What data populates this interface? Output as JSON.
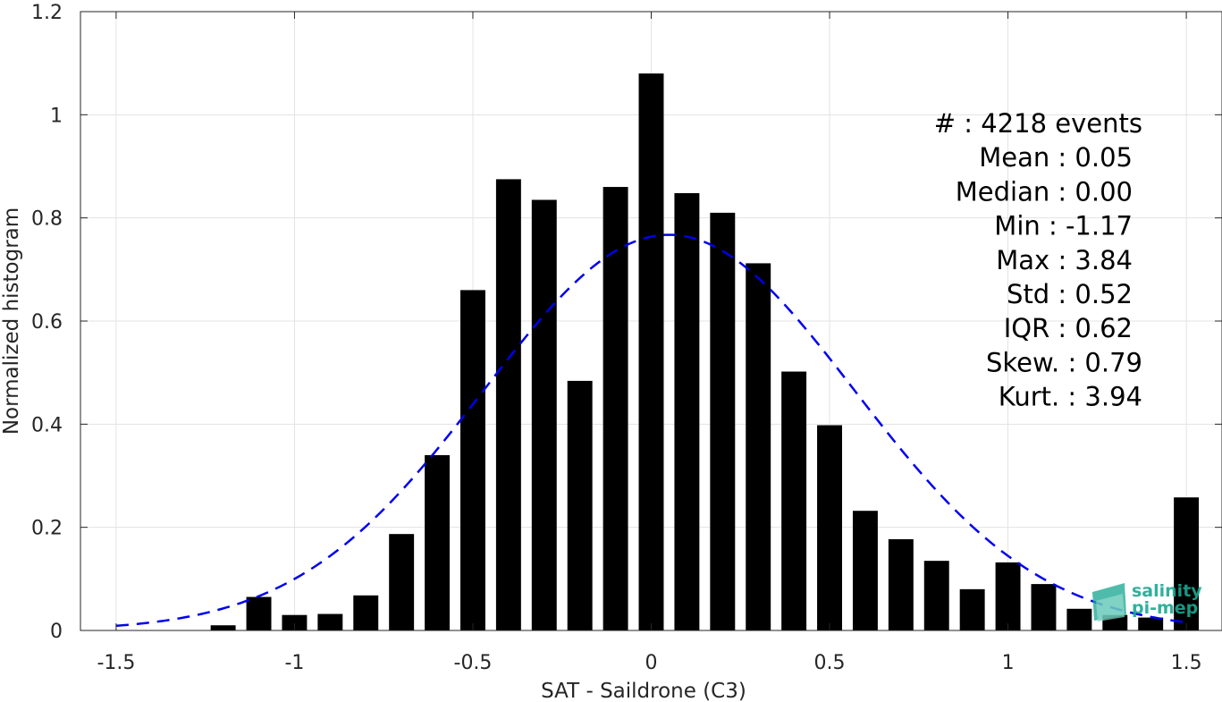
{
  "chart_data": {
    "type": "bar",
    "title": "",
    "xlabel": "SAT - Saildrone (C3)",
    "ylabel": "Normalized histogram",
    "xlim": [
      -1.6,
      1.6
    ],
    "ylim": [
      0,
      1.2
    ],
    "xticks": [
      -1.5,
      -1,
      -0.5,
      0,
      0.5,
      1,
      1.5
    ],
    "xtick_labels": [
      "-1.5",
      "-1",
      "-0.5",
      "0",
      "0.5",
      "1",
      "1.5"
    ],
    "yticks": [
      0,
      0.2,
      0.4,
      0.6,
      0.8,
      1,
      1.2
    ],
    "ytick_labels": [
      "0",
      "0.2",
      "0.4",
      "0.6",
      "0.8",
      "1",
      "1.2"
    ],
    "grid": true,
    "bar_color": "#000000",
    "bars": {
      "x": [
        -1.2,
        -1.1,
        -1.0,
        -0.9,
        -0.8,
        -0.7,
        -0.6,
        -0.5,
        -0.4,
        -0.3,
        -0.2,
        -0.1,
        0.0,
        0.1,
        0.2,
        0.3,
        0.4,
        0.5,
        0.6,
        0.7,
        0.8,
        0.9,
        1.0,
        1.1,
        1.2,
        1.3,
        1.4,
        1.5
      ],
      "values": [
        0.01,
        0.065,
        0.03,
        0.032,
        0.068,
        0.187,
        0.34,
        0.66,
        0.875,
        0.835,
        0.484,
        0.86,
        1.08,
        0.848,
        0.81,
        0.712,
        0.502,
        0.398,
        0.232,
        0.177,
        0.135,
        0.08,
        0.132,
        0.09,
        0.042,
        0.03,
        0.025,
        0.258
      ]
    },
    "fit_curve": {
      "style": "dashed",
      "color": "#0000ee",
      "mean": 0.05,
      "std": 0.52,
      "x_range": [
        -1.5,
        1.5
      ]
    },
    "stats": [
      "#  : 4218 events",
      "Mean : 0.05",
      "Median : 0.00",
      "Min : -1.17",
      "Max : 3.84",
      "Std : 0.52",
      "IQR : 0.62",
      "Skew. : 0.79",
      "Kurt. : 3.94"
    ]
  },
  "logo": {
    "line1": "salinity",
    "line2": "pi-mep"
  }
}
